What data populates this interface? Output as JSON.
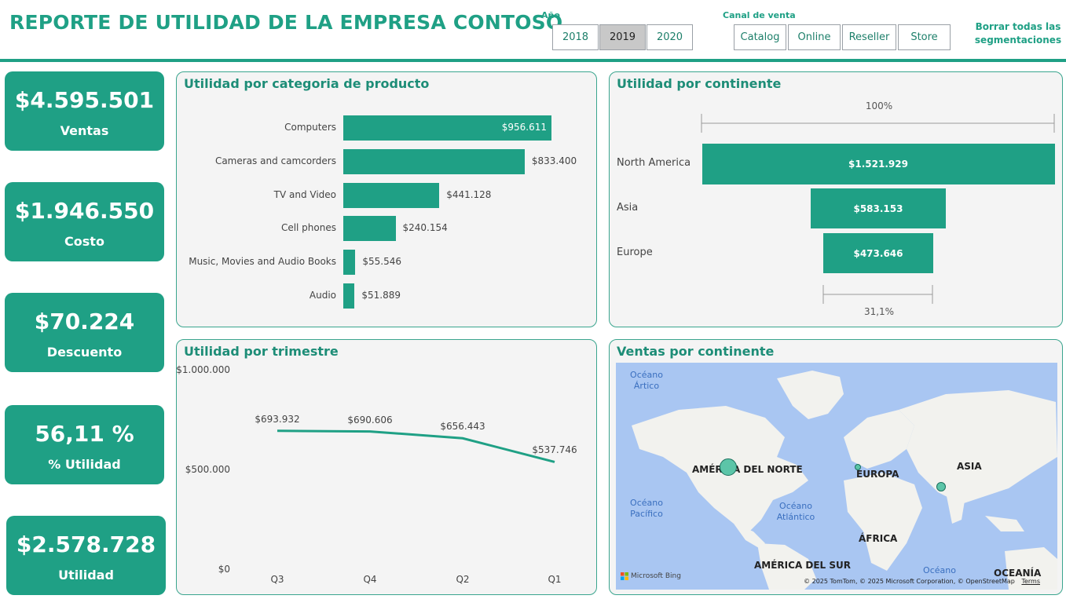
{
  "header": {
    "title": "REPORTE DE UTILIDAD DE LA EMPRESA CONTOSO"
  },
  "slicers": {
    "year": {
      "label": "Año",
      "options": [
        "2018",
        "2019",
        "2020"
      ],
      "selected": "2019"
    },
    "channel": {
      "label": "Canal de venta",
      "options": [
        "Catalog",
        "Online",
        "Reseller",
        "Store"
      ]
    },
    "clear_all": "Borrar todas las segmentaciones"
  },
  "kpis": [
    {
      "value": "$4.595.501",
      "label": "Ventas"
    },
    {
      "value": "$1.946.550",
      "label": "Costo"
    },
    {
      "value": "$70.224",
      "label": "Descuento"
    },
    {
      "value": "56,11 %",
      "label": "% Utilidad"
    },
    {
      "value": "$2.578.728",
      "label": "Utilidad"
    }
  ],
  "category_chart": {
    "title": "Utilidad por categoria de producto",
    "chart_data": {
      "type": "bar",
      "orientation": "horizontal",
      "categories": [
        "Computers",
        "Cameras and camcorders",
        "TV and Video",
        "Cell phones",
        "Music, Movies and Audio Books",
        "Audio"
      ],
      "values": [
        956611,
        833400,
        441128,
        240154,
        55546,
        51889
      ],
      "labels": [
        "$956.611",
        "$833.400",
        "$441.128",
        "$240.154",
        "$55.546",
        "$51.889"
      ]
    }
  },
  "continent_funnel": {
    "title": "Utilidad por continente",
    "top_pct": "100%",
    "bottom_pct": "31,1%",
    "chart_data": {
      "type": "bar",
      "subtype": "funnel",
      "categories": [
        "North America",
        "Asia",
        "Europe"
      ],
      "values": [
        1521929,
        583153,
        473646
      ],
      "labels": [
        "$1.521.929",
        "$583.153",
        "$473.646"
      ]
    }
  },
  "quarter_chart": {
    "title": "Utilidad por trimestre",
    "chart_data": {
      "type": "line",
      "x": [
        "Q3",
        "Q4",
        "Q2",
        "Q1"
      ],
      "values": [
        693932,
        690606,
        656443,
        537746
      ],
      "labels": [
        "$693.932",
        "$690.606",
        "$656.443",
        "$537.746"
      ],
      "ylim": [
        0,
        1000000
      ],
      "yticks": [
        "$1.000.000",
        "$500.000",
        "$0"
      ],
      "color": "#1fa085"
    }
  },
  "map_panel": {
    "title": "Ventas por continente",
    "continents": [
      "AMÉRICA DEL NORTE",
      "EUROPA",
      "ASIA",
      "ÁFRICA",
      "AMÉRICA DEL SUR",
      "OCEANÍA"
    ],
    "oceans": {
      "arctic": [
        "Océano",
        "Ártico"
      ],
      "pacific": [
        "Océano",
        "Pacífico"
      ],
      "atlantic": [
        "Océano",
        "Atlántico"
      ],
      "indian": "Océano"
    },
    "attribution": "© 2025 TomTom, © 2025 Microsoft Corporation, © OpenStreetMap",
    "terms": "Terms",
    "brand": "Microsoft Bing"
  },
  "colors": {
    "accent": "#1fa085",
    "panel_bg": "#f4f4f4",
    "map_water": "#a9c6f2",
    "map_land": "#f2f2ee"
  }
}
